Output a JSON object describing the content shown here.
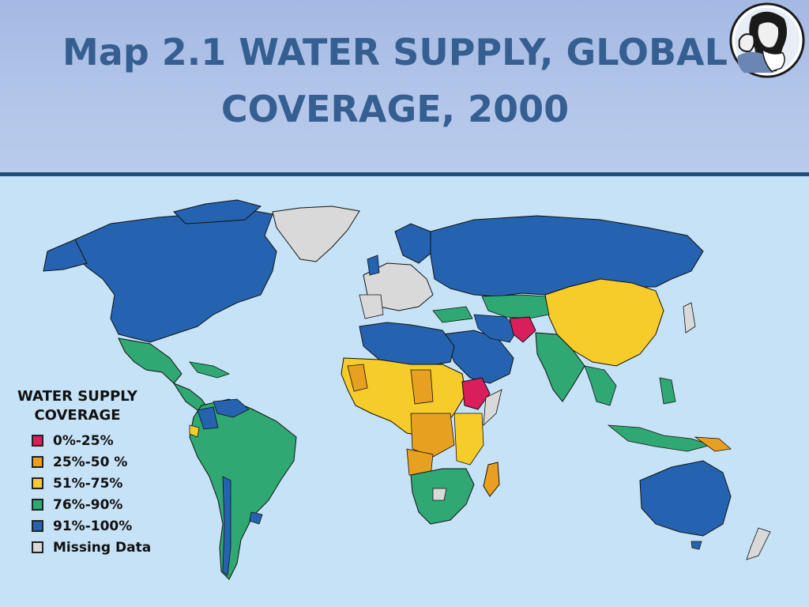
{
  "slide": {
    "title": "Map 2.1 WATER SUPPLY, GLOBAL COVERAGE, 2000",
    "title_line1": "Map 2.1 WATER SUPPLY, GLOBAL",
    "title_line2": "COVERAGE, 2000"
  },
  "colors": {
    "header_bg": "#b3c6ea",
    "title_text": "#365f91",
    "ocean": "#c6e2f6",
    "range_0_25": "#d81e5b",
    "range_25_50": "#e8a021",
    "range_51_75": "#f5cc2a",
    "range_76_90": "#2fa874",
    "range_91_100": "#2563b0",
    "missing": "#d9d9d9"
  },
  "legend": {
    "title_line1": "WATER SUPPLY",
    "title_line2": "COVERAGE",
    "items": [
      {
        "label": "0%-25%",
        "color": "#d81e5b"
      },
      {
        "label": "25%-50 %",
        "color": "#e8a021"
      },
      {
        "label": "51%-75%",
        "color": "#f5cc2a"
      },
      {
        "label": "76%-90%",
        "color": "#2fa874"
      },
      {
        "label": "91%-100%",
        "color": "#2563b0"
      },
      {
        "label": "Missing Data",
        "color": "#d9d9d9"
      }
    ]
  },
  "regions": {
    "north_america": "91%-100%",
    "greenland": "Missing Data",
    "mexico_central_america": "76%-90%",
    "south_america": "76%-90%",
    "western_europe": "Missing Data",
    "russia_north_asia": "91%-100%",
    "china": "51%-75%",
    "india_south_asia": "76%-90%",
    "afghanistan": "0%-25%",
    "ethiopia": "0%-25%",
    "sahel_central_africa": "51%-75%",
    "madagascar": "25%-50 %",
    "southern_africa": "76%-90%",
    "arabia_north_africa": "91%-100%",
    "australia": "91%-100%",
    "southeast_asia": "76%-90%"
  }
}
